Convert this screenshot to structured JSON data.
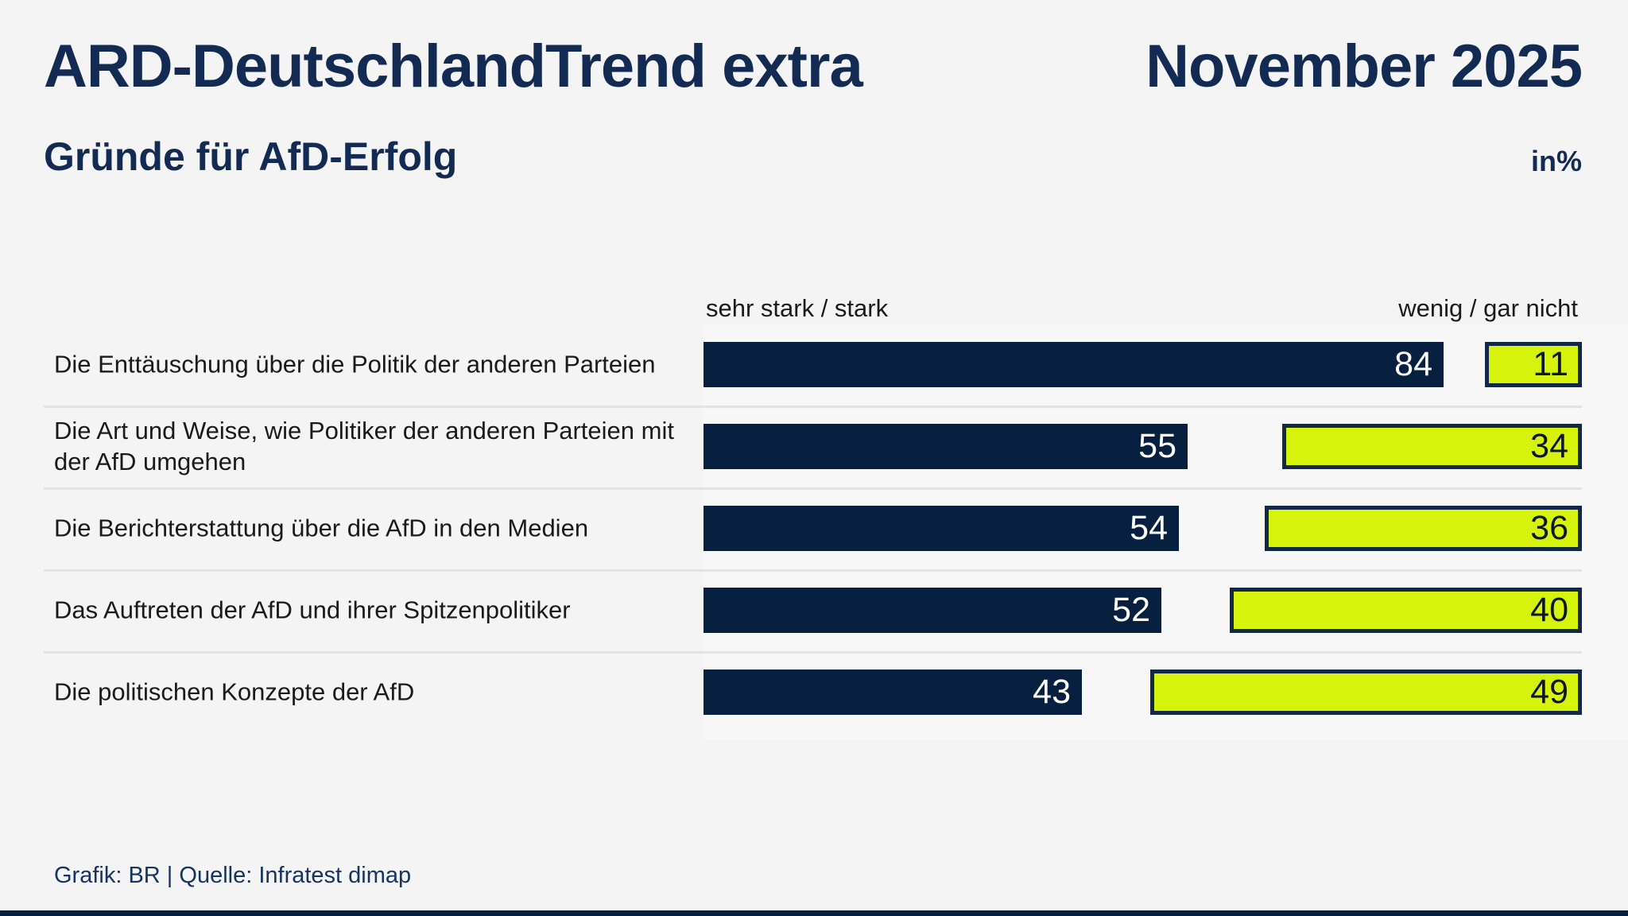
{
  "header": {
    "title": "ARD-DeutschlandTrend extra",
    "edition": "November 2025",
    "subtitle": "Gründe für AfD-Erfolg",
    "unit_label": "in%"
  },
  "chart_data": {
    "type": "bar",
    "orientation": "horizontal",
    "unit": "percent",
    "xlim": [
      0,
      100
    ],
    "grid": false,
    "legend_position": "column headers above bars",
    "categories": [
      "Die Enttäuschung über die Politik der anderen Parteien",
      "Die Art und Weise, wie Politiker der anderen Parteien mit der AfD umgehen",
      "Die Berichterstattung über die AfD in den Medien",
      "Das Auftreten der AfD und ihrer Spitzenpolitiker",
      "Die politischen Konzepte der AfD"
    ],
    "series": [
      {
        "name": "sehr stark / stark",
        "color": "#07203f",
        "bar_alignment": "left",
        "values": [
          84,
          55,
          54,
          52,
          43
        ]
      },
      {
        "name": "wenig / gar nicht",
        "color": "#d6f30c",
        "border_color": "#112947",
        "bar_alignment": "right",
        "values": [
          11,
          34,
          36,
          40,
          49
        ]
      }
    ]
  },
  "footer": {
    "credit": "Grafik: BR | Quelle: Infratest dimap"
  },
  "colors": {
    "navy": "#07203f",
    "lime": "#d6f30c",
    "heading_navy": "#132b52",
    "background": "#f4f4f4",
    "chart_band": "#f7f7f8",
    "divider": "#e3e3e3",
    "text_dark": "#1a1a1a"
  }
}
